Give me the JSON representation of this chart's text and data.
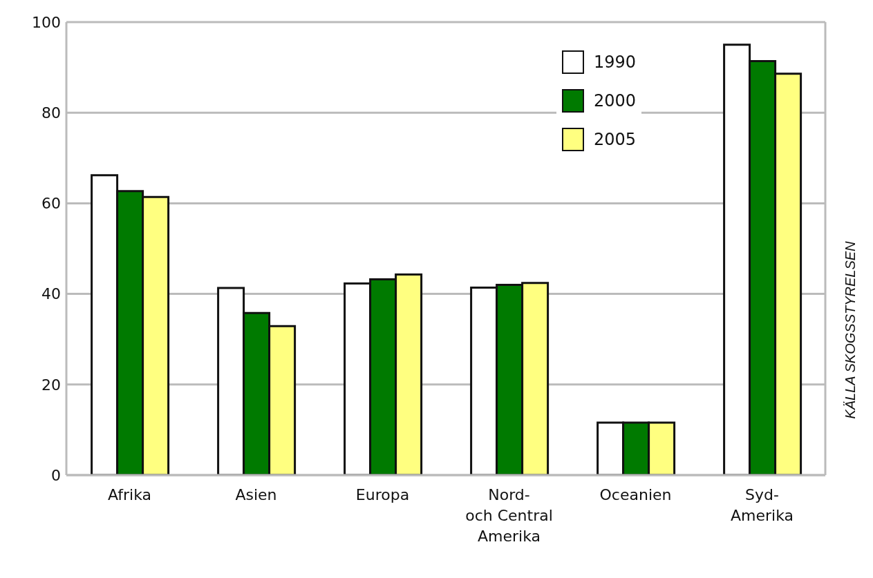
{
  "chart_data": {
    "type": "bar",
    "categories": [
      "Afrika",
      "Asien",
      "Europa",
      "Nord-\noch Central\nAmerika",
      "Oceanien",
      "Syd-\nAmerika"
    ],
    "series": [
      {
        "name": "1990",
        "color": "#ffffff",
        "values": [
          66.2,
          41.3,
          42.3,
          41.4,
          11.6,
          95
        ]
      },
      {
        "name": "2000",
        "color": "#007a00",
        "values": [
          62.7,
          35.8,
          43.2,
          42.0,
          11.6,
          91.4
        ]
      },
      {
        "name": "2005",
        "color": "#ffff80",
        "values": [
          61.4,
          32.9,
          44.3,
          42.4,
          11.6,
          88.6
        ]
      }
    ],
    "ylim": [
      0,
      100
    ],
    "yticks": [
      0,
      20,
      40,
      60,
      80,
      100
    ],
    "grid": "y",
    "legend": "top right",
    "annotations": [
      "KÄLLA SKOGSSTYRELSEN"
    ]
  }
}
